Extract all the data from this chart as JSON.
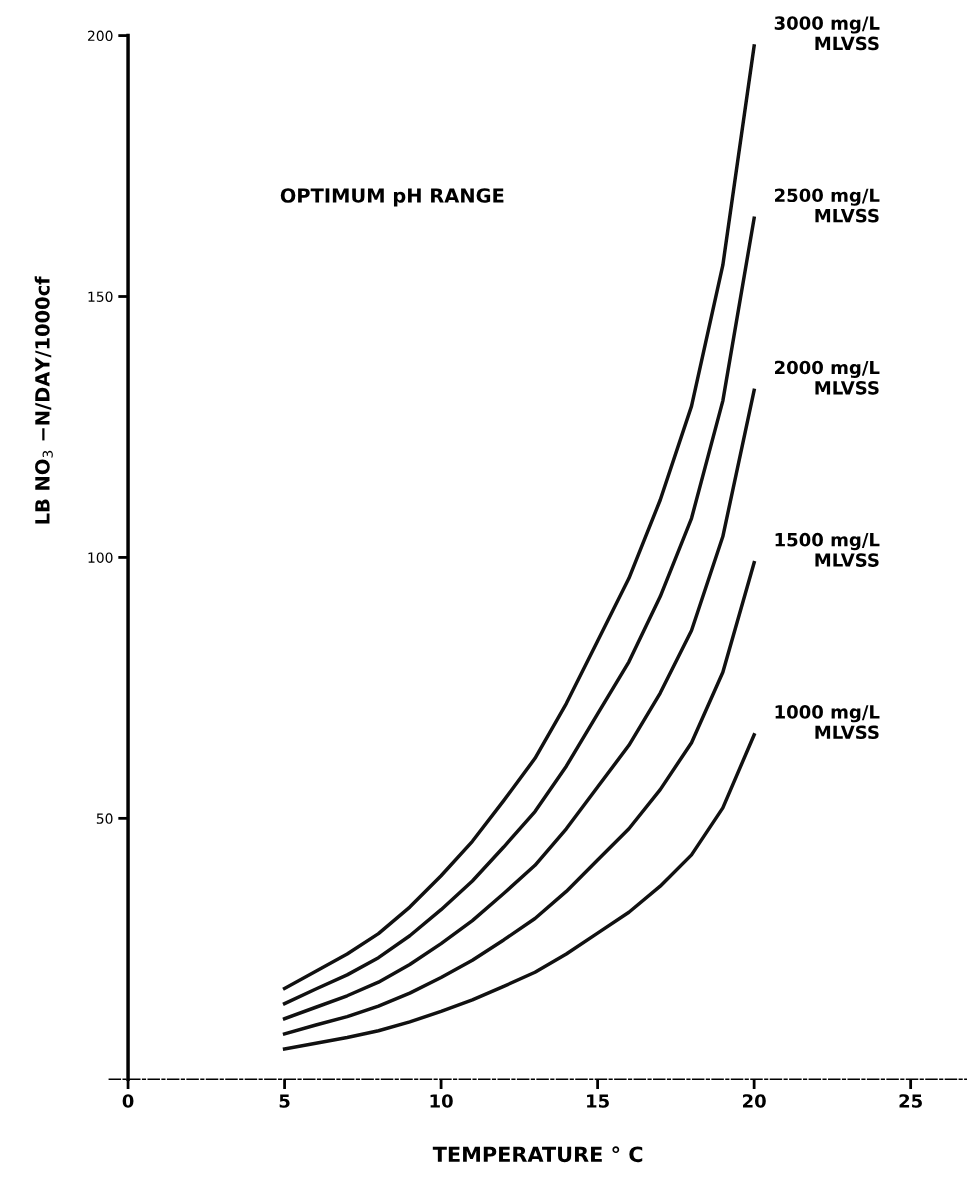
{
  "chart_data": {
    "type": "line",
    "xlabel": "TEMPERATURE ° C",
    "ylabel": "LB NO$_{3}$ −N/DAY/1000cf",
    "annotations": [
      "OPTIMUM pH RANGE"
    ],
    "x": [
      5,
      6,
      7,
      8,
      9,
      10,
      11,
      12,
      13,
      14,
      15,
      16,
      17,
      18,
      19,
      20
    ],
    "xlim": [
      -0.6,
      26.8
    ],
    "xticks": [
      0,
      5,
      10,
      15,
      20,
      25
    ],
    "ylim": [
      0,
      200
    ],
    "yticks": [
      50,
      100,
      150,
      200
    ],
    "grid": false,
    "legend": false,
    "marker": "none",
    "line_style": "solid",
    "series": [
      {
        "name": "3000 mg/L\nMLVSS",
        "color": "#111111",
        "values": [
          17.4,
          20.7,
          24,
          27.9,
          33,
          39,
          45.6,
          53.4,
          61.5,
          72,
          84,
          96,
          111,
          129,
          156,
          198
        ]
      },
      {
        "name": "2500 mg/L\nMLVSS",
        "color": "#111111",
        "values": [
          14.5,
          17.3,
          20,
          23.3,
          27.5,
          32.5,
          38,
          44.5,
          51.3,
          60,
          70,
          80,
          92.5,
          107.5,
          130,
          165
        ]
      },
      {
        "name": "2000 mg/L\nMLVSS",
        "color": "#111111",
        "values": [
          11.6,
          13.8,
          16,
          18.6,
          22,
          26,
          30.4,
          35.6,
          41,
          48,
          56,
          64,
          74,
          86,
          104,
          132
        ]
      },
      {
        "name": "1500 mg/L\nMLVSS",
        "color": "#111111",
        "values": [
          8.7,
          10.4,
          12,
          14,
          16.5,
          19.5,
          22.8,
          26.7,
          30.8,
          36,
          42,
          48,
          55.5,
          64.5,
          78,
          99
        ]
      },
      {
        "name": "1000 mg/L\nMLVSS",
        "color": "#111111",
        "values": [
          5.8,
          6.9,
          8,
          9.3,
          11,
          13,
          15.2,
          17.8,
          20.5,
          24,
          28,
          32,
          37,
          43,
          52,
          66
        ]
      }
    ]
  }
}
